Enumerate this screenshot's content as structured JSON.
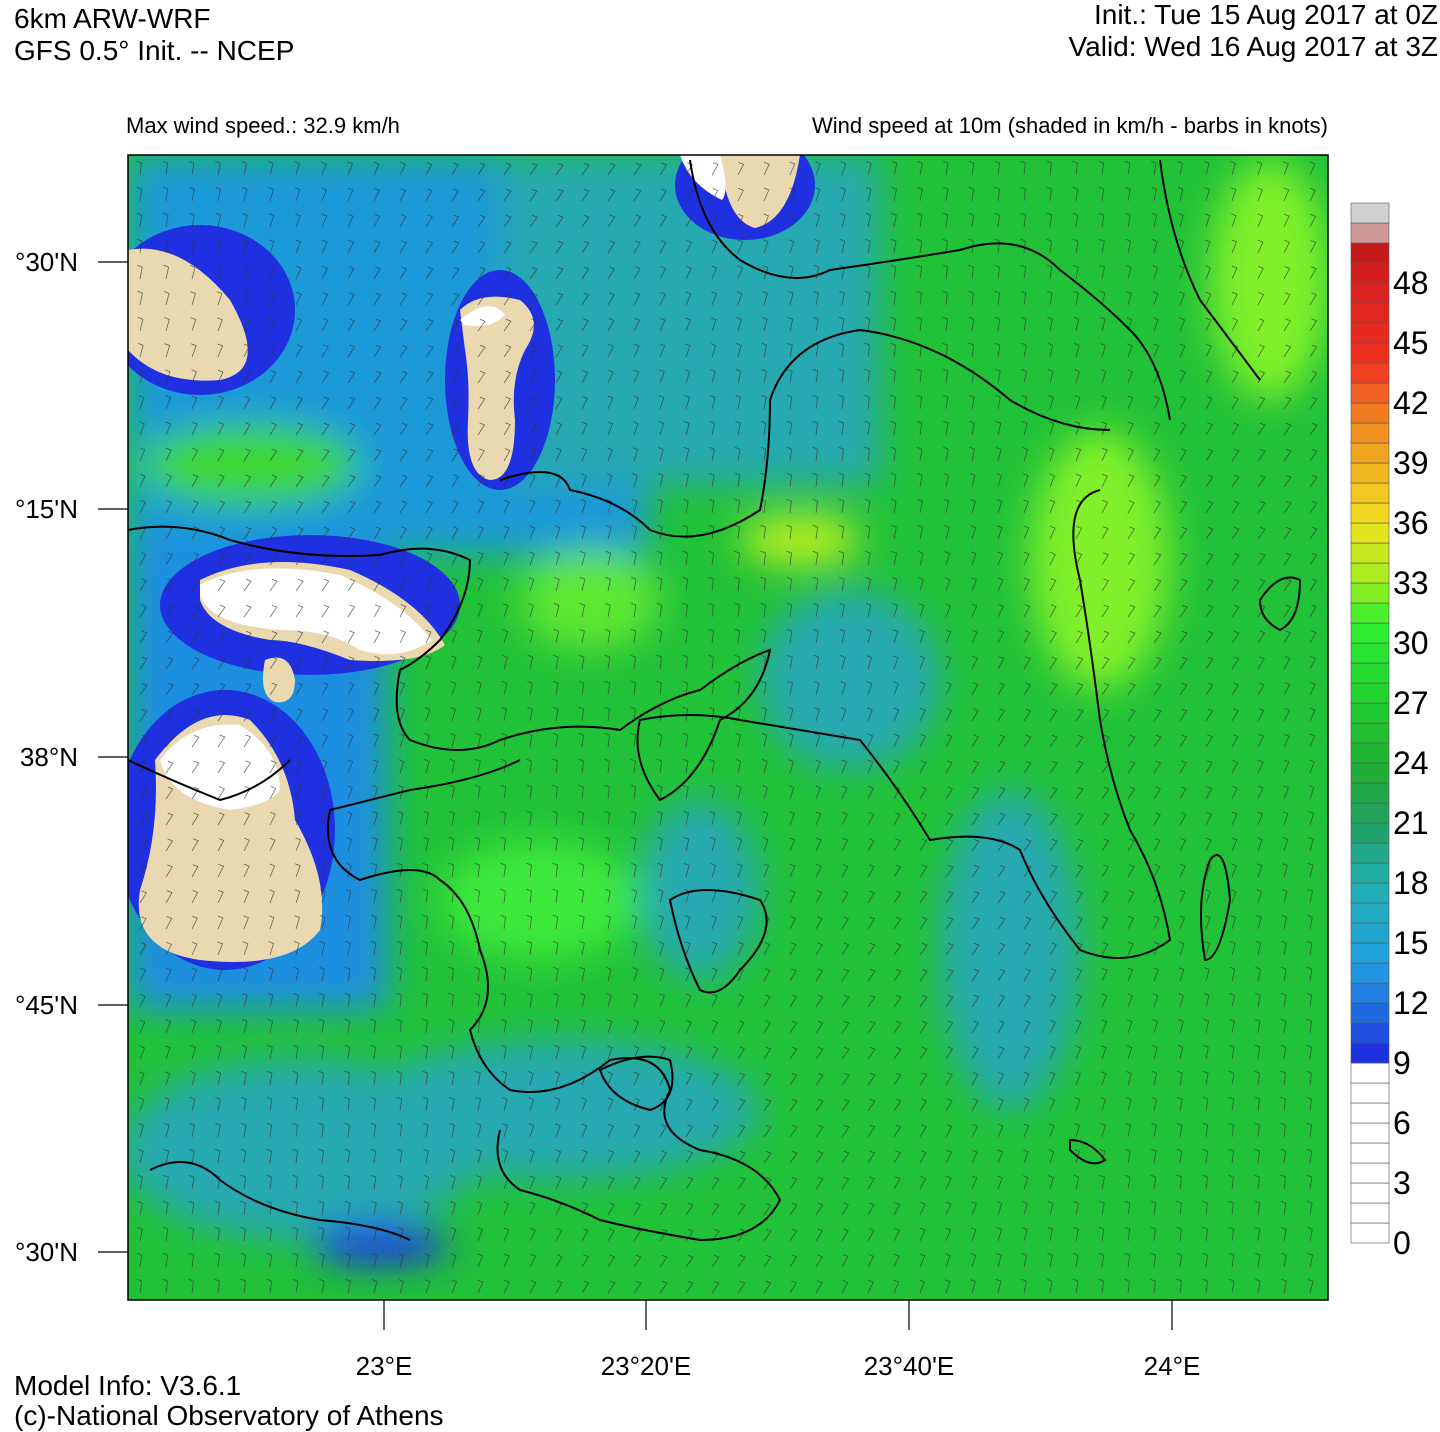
{
  "header": {
    "model": "6km ARW-WRF",
    "init_source": "GFS 0.5° Init. -- NCEP",
    "init_time": "Init.:  Tue 15 Aug 2017 at 0Z",
    "valid_time": "Valid: Wed 16 Aug 2017 at 3Z"
  },
  "subtitle": {
    "left": "Max wind speed.: 32.9 km/h",
    "right": "Wind speed at 10m (shaded in km/h - barbs in knots)"
  },
  "map": {
    "x_labels": [
      "23°E",
      "23°20'E",
      "23°40'E",
      "24°E"
    ],
    "y_labels": [
      "°30'N",
      "°15'N",
      "38°N",
      "°45'N",
      "°30'N"
    ]
  },
  "colorbar": {
    "labels": [
      0,
      3,
      6,
      9,
      12,
      15,
      18,
      21,
      24,
      27,
      30,
      33,
      36,
      39,
      42,
      45,
      48
    ]
  },
  "footer": {
    "model_info": "Model Info: V3.6.1",
    "credit": "(c)-National Observatory of Athens"
  }
}
